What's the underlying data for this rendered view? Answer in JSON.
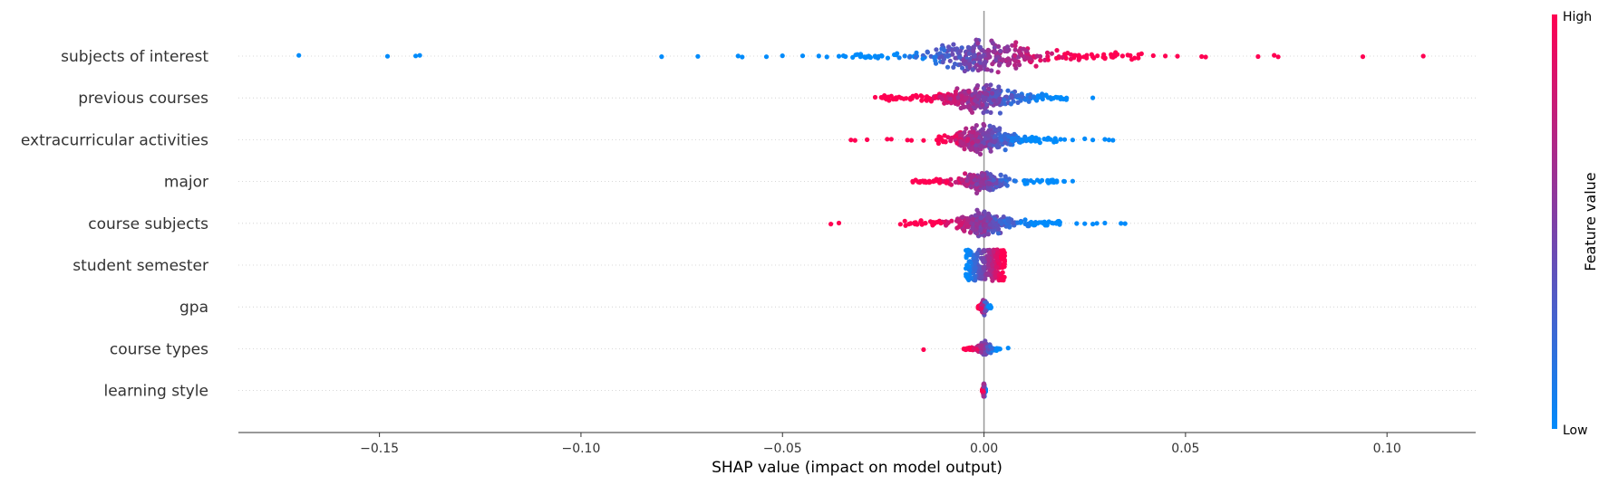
{
  "chart_data": {
    "type": "scatter",
    "subtype": "shap-beeswarm",
    "xlabel": "SHAP value (impact on model output)",
    "xlim": [
      -0.185,
      0.122
    ],
    "xticks": [
      -0.15,
      -0.1,
      -0.05,
      0.0,
      0.05,
      0.1
    ],
    "xtick_labels": [
      "−0.15",
      "−0.10",
      "−0.05",
      "0.00",
      "0.05",
      "0.10"
    ],
    "zero_line": 0.0,
    "features": [
      {
        "name": "subjects of interest",
        "distribution": {
          "min": -0.035,
          "max": 0.04,
          "core_min": -0.012,
          "core_max": 0.012,
          "spread": 0.9
        },
        "points": [
          {
            "x": -0.17,
            "c": 0.0
          },
          {
            "x": -0.148,
            "c": 0.0
          },
          {
            "x": -0.141,
            "c": 0.0
          },
          {
            "x": -0.14,
            "c": 0.0
          },
          {
            "x": -0.08,
            "c": 0.0
          },
          {
            "x": -0.071,
            "c": 0.0
          },
          {
            "x": -0.061,
            "c": 0.0
          },
          {
            "x": -0.06,
            "c": 0.0
          },
          {
            "x": -0.054,
            "c": 0.0
          },
          {
            "x": -0.05,
            "c": 0.0
          },
          {
            "x": -0.045,
            "c": 0.0
          },
          {
            "x": -0.041,
            "c": 0.0
          },
          {
            "x": -0.039,
            "c": 0.0
          },
          {
            "x": -0.036,
            "c": 0.0
          },
          {
            "x": 0.042,
            "c": 1.0
          },
          {
            "x": 0.045,
            "c": 1.0
          },
          {
            "x": 0.048,
            "c": 1.0
          },
          {
            "x": 0.054,
            "c": 1.0
          },
          {
            "x": 0.055,
            "c": 1.0
          },
          {
            "x": 0.068,
            "c": 1.0
          },
          {
            "x": 0.072,
            "c": 1.0
          },
          {
            "x": 0.073,
            "c": 1.0
          },
          {
            "x": 0.094,
            "c": 1.0
          },
          {
            "x": 0.109,
            "c": 1.0
          }
        ]
      },
      {
        "name": "previous courses",
        "distribution": {
          "min": -0.026,
          "max": 0.021,
          "core_min": -0.01,
          "core_max": 0.008,
          "spread": 0.7
        },
        "points": [
          {
            "x": -0.027,
            "c": 1.0
          },
          {
            "x": 0.027,
            "c": 0.0
          }
        ]
      },
      {
        "name": "extracurricular activities",
        "distribution": {
          "min": -0.012,
          "max": 0.018,
          "core_min": -0.006,
          "core_max": 0.006,
          "spread": 0.75
        },
        "points": [
          {
            "x": -0.033,
            "c": 1.0
          },
          {
            "x": -0.032,
            "c": 1.0
          },
          {
            "x": -0.029,
            "c": 1.0
          },
          {
            "x": -0.024,
            "c": 1.0
          },
          {
            "x": -0.023,
            "c": 1.0
          },
          {
            "x": -0.019,
            "c": 1.0
          },
          {
            "x": -0.018,
            "c": 1.0
          },
          {
            "x": -0.015,
            "c": 1.0
          },
          {
            "x": 0.019,
            "c": 0.0
          },
          {
            "x": 0.02,
            "c": 0.0
          },
          {
            "x": 0.022,
            "c": 0.0
          },
          {
            "x": 0.025,
            "c": 0.0
          },
          {
            "x": 0.027,
            "c": 0.0
          },
          {
            "x": 0.03,
            "c": 0.0
          },
          {
            "x": 0.031,
            "c": 0.0
          },
          {
            "x": 0.032,
            "c": 0.0
          }
        ]
      },
      {
        "name": "major",
        "distribution": {
          "min": -0.018,
          "max": 0.02,
          "core_min": -0.004,
          "core_max": 0.004,
          "spread": 0.5
        },
        "points": [
          {
            "x": 0.022,
            "c": 0.0
          }
        ]
      },
      {
        "name": "course subjects",
        "distribution": {
          "min": -0.021,
          "max": 0.019,
          "core_min": -0.006,
          "core_max": 0.006,
          "spread": 0.6
        },
        "points": [
          {
            "x": -0.038,
            "c": 1.0
          },
          {
            "x": -0.036,
            "c": 1.0
          },
          {
            "x": 0.023,
            "c": 0.0
          },
          {
            "x": 0.025,
            "c": 0.0
          },
          {
            "x": 0.027,
            "c": 0.0
          },
          {
            "x": 0.028,
            "c": 0.0
          },
          {
            "x": 0.03,
            "c": 0.0
          },
          {
            "x": 0.034,
            "c": 0.0
          },
          {
            "x": 0.035,
            "c": 0.0
          }
        ]
      },
      {
        "name": "student semester",
        "distribution": {
          "min": -0.0045,
          "max": 0.0052,
          "core_min": -0.0045,
          "core_max": 0.0052,
          "spread": 1.0,
          "mode": "block"
        },
        "points": []
      },
      {
        "name": "gpa",
        "distribution": {
          "min": -0.0015,
          "max": 0.0018,
          "core_min": -0.001,
          "core_max": 0.001,
          "spread": 0.35
        },
        "points": []
      },
      {
        "name": "course types",
        "distribution": {
          "min": -0.005,
          "max": 0.004,
          "core_min": -0.001,
          "core_max": 0.001,
          "spread": 0.3
        },
        "points": [
          {
            "x": -0.015,
            "c": 1.0
          },
          {
            "x": -0.005,
            "c": 1.0
          },
          {
            "x": 0.006,
            "c": 0.0
          }
        ]
      },
      {
        "name": "learning style",
        "distribution": {
          "min": -0.0004,
          "max": 0.0004,
          "core_min": -0.0004,
          "core_max": 0.0004,
          "spread": 0.4
        },
        "points": []
      }
    ],
    "colorbar": {
      "title": "Feature value",
      "high_label": "High",
      "low_label": "Low",
      "low_color": "#008bfb",
      "high_color": "#ff0052"
    }
  }
}
